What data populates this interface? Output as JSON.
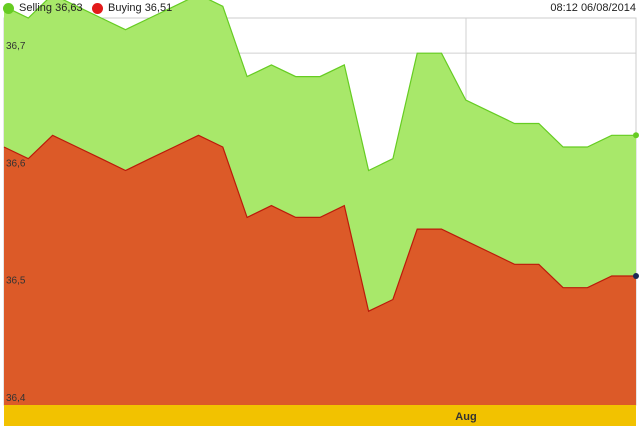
{
  "legend": {
    "selling_label": "Selling 36,63",
    "buying_label": "Buying 36,51",
    "timestamp": "08:12 06/08/2014"
  },
  "colors": {
    "selling": "#a8e86a",
    "selling_line": "#66cc22",
    "selling_dot": "#66cc22",
    "buying": "#dc5a28",
    "buying_line": "#bb1a0a",
    "buying_dot": "#e21a1a",
    "xaxis_band": "#f2c200",
    "grid": "#d0d0d0",
    "last_marker_buying": "#1a2a55"
  },
  "chart_data": {
    "type": "area",
    "x_ticks": [
      "Aug"
    ],
    "y_ticks": [
      "36,4",
      "36,5",
      "36,6",
      "36,7"
    ],
    "ylim": [
      36.4,
      36.73
    ],
    "grid": true,
    "legend_position": "top-left",
    "series": [
      {
        "name": "Selling",
        "values": [
          36.74,
          36.73,
          36.75,
          36.74,
          36.73,
          36.72,
          36.73,
          36.74,
          36.75,
          36.74,
          36.68,
          36.69,
          36.68,
          36.68,
          36.69,
          36.6,
          36.61,
          36.7,
          36.7,
          36.66,
          36.65,
          36.64,
          36.64,
          36.62,
          36.62,
          36.63,
          36.63
        ]
      },
      {
        "name": "Buying",
        "values": [
          36.62,
          36.61,
          36.63,
          36.62,
          36.61,
          36.6,
          36.61,
          36.62,
          36.63,
          36.62,
          36.56,
          36.57,
          36.56,
          36.56,
          36.57,
          36.48,
          36.49,
          36.55,
          36.55,
          36.54,
          36.53,
          36.52,
          36.52,
          36.5,
          36.5,
          36.51,
          36.51
        ]
      }
    ]
  }
}
